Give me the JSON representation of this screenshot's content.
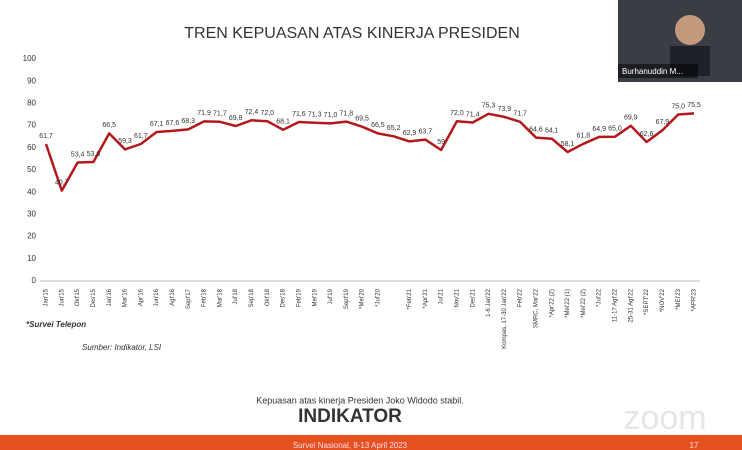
{
  "chart_data": {
    "type": "line",
    "title": "TREN KEPUASAN ATAS KINERJA PRESIDEN",
    "categories": [
      "Jan'15",
      "Jun'15",
      "Okt'15",
      "Des'15",
      "Jan'16",
      "Mar'16",
      "Apr'16",
      "Jun'16",
      "Agt'16",
      "Sept'17",
      "Feb'18",
      "Mar'18",
      "Jul'18",
      "Sep'18",
      "Okt'18",
      "Des'18",
      "Feb'19",
      "Mei'19",
      "Jul'19",
      "Sept'19",
      "*Mei'20",
      "*Jul'20",
      null,
      "*Feb'21",
      "*Apr'21",
      "Jul'21",
      "Nov'21",
      "Des'21",
      "1-6 Jan'22",
      "Kompas, 17-30 Jan'22",
      "Feb'22",
      "SMRC, Mar'22",
      "*Apr'22 (2)",
      "*Mei'22 (1)",
      "*Mei'22 (2)",
      "*Jul'22",
      "11-17 Agt'22",
      "25-31 Agt'22",
      "*SEPT'22",
      "*NOV'22",
      "*MEI'23",
      "*APR'23"
    ],
    "values": [
      61.7,
      40.7,
      53.4,
      53.6,
      66.5,
      59.3,
      61.7,
      67.1,
      67.6,
      68.3,
      71.9,
      71.7,
      69.8,
      72.4,
      72.0,
      68.1,
      71.6,
      71.3,
      71.0,
      71.8,
      69.5,
      66.5,
      65.2,
      62.9,
      63.7,
      59,
      72.0,
      71.4,
      75.3,
      73.9,
      71.7,
      64.6,
      64.1,
      58.1,
      61.8,
      64.9,
      65.0,
      69.9,
      62.6,
      67.9,
      75.0,
      75.5
    ],
    "value_labels": [
      "61,7",
      "40,7",
      "53,4",
      "53,6",
      "66,5",
      "59,3",
      "61,7",
      "67,1",
      "67,6",
      "68,3",
      "71,9",
      "71,7",
      "69,8",
      "72,4",
      "72,0",
      "68,1",
      "71,6",
      "71,3",
      "71,0",
      "71,8",
      "69,5",
      "66,5",
      "65,2",
      "62,9",
      "63,7",
      "59",
      "72,0",
      "71,4",
      "75,3",
      "73,9",
      "71,7",
      "64,6",
      "64,1",
      "58,1",
      "61,8",
      "64,9",
      "65,0",
      "69,9",
      "62,6",
      "67,9",
      "75,0",
      "75,5"
    ],
    "color": "#b3191c",
    "ylim": [
      0,
      100
    ],
    "yticks": [
      0,
      10,
      20,
      30,
      40,
      50,
      60,
      70,
      80,
      90,
      100
    ],
    "grid": false
  },
  "slide": {
    "note": "*Survei Telepon",
    "source": "Sumber: Indikator, LSI",
    "caption": "Kepuasan atas kinerja Presiden Joko Widodo stabil.",
    "logo": "INDIKATOR",
    "footer": "Survei Nasional, 8-13 April 2023",
    "page": "17"
  },
  "video": {
    "participant": "Burhanuddin M...",
    "app": "zoom"
  }
}
